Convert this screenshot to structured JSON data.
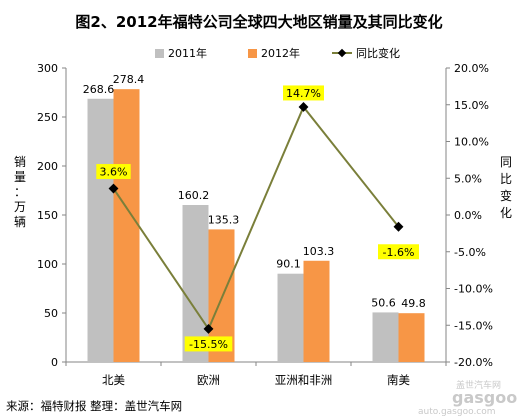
{
  "title": "图2、2012年福特公司全球四大地区销量及其同比变化",
  "source": "来源：福特财报   整理：盖世汽车网",
  "watermark": {
    "small": "盖世汽车网",
    "logo": "gasgoo",
    "url": "auto.gasgoo.com"
  },
  "colors": {
    "series_2011": "#c0c0c0",
    "series_2012": "#f79646",
    "line": "#7a7f3a",
    "label_bg": "#ffff00"
  },
  "chart_data": {
    "type": "bar+line",
    "categories": [
      "北美",
      "欧洲",
      "亚洲和非洲",
      "南美"
    ],
    "series": [
      {
        "name": "2011年",
        "values": [
          268.6,
          160.2,
          90.1,
          50.6
        ],
        "labels": [
          "268.6",
          "160.2",
          "90.1",
          "50.6"
        ]
      },
      {
        "name": "2012年",
        "values": [
          278.4,
          135.3,
          103.3,
          49.8
        ],
        "labels": [
          "278.4",
          "135.3",
          "103.3",
          "49.8"
        ]
      }
    ],
    "line_series": {
      "name": "同比变化",
      "values": [
        3.6,
        -15.5,
        14.7,
        -1.6
      ],
      "labels": [
        "3.6%",
        "-15.5%",
        "14.7%",
        "-1.6%"
      ]
    },
    "ylabel_left": [
      "销",
      "量",
      "：",
      "万",
      "辆"
    ],
    "ylabel_right": [
      "同",
      "比",
      "变",
      "化"
    ],
    "ylim_left": [
      0,
      300
    ],
    "yticks_left": [
      "0",
      "50",
      "100",
      "150",
      "200",
      "250",
      "300"
    ],
    "ylim_right": [
      -20,
      20
    ],
    "yticks_right": [
      "-20.0%",
      "-15.0%",
      "-10.0%",
      "-5.0%",
      "0.0%",
      "5.0%",
      "10.0%",
      "15.0%",
      "20.0%"
    ],
    "legend_position": "top",
    "grid": false
  }
}
